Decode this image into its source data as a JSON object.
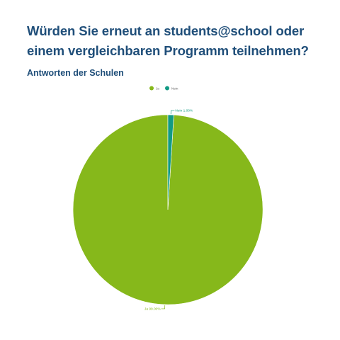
{
  "title": "Würden Sie erneut an students@school oder einem vergleichbaren Programm teilnehmen?",
  "subtitle": "Antworten der Schulen",
  "chart_data": {
    "type": "pie",
    "title": "Würden Sie erneut an students@school oder einem vergleichbaren Programm teilnehmen?",
    "subtitle": "Antworten der Schulen",
    "legend_position": "top-center",
    "slices": [
      {
        "label": "Ja",
        "value": 99.0,
        "data_label": "Ja 99.00%",
        "color": "#86b81b"
      },
      {
        "label": "Nein",
        "value": 1.0,
        "data_label": "Nein 1.00%",
        "color": "#129a84"
      }
    ]
  }
}
